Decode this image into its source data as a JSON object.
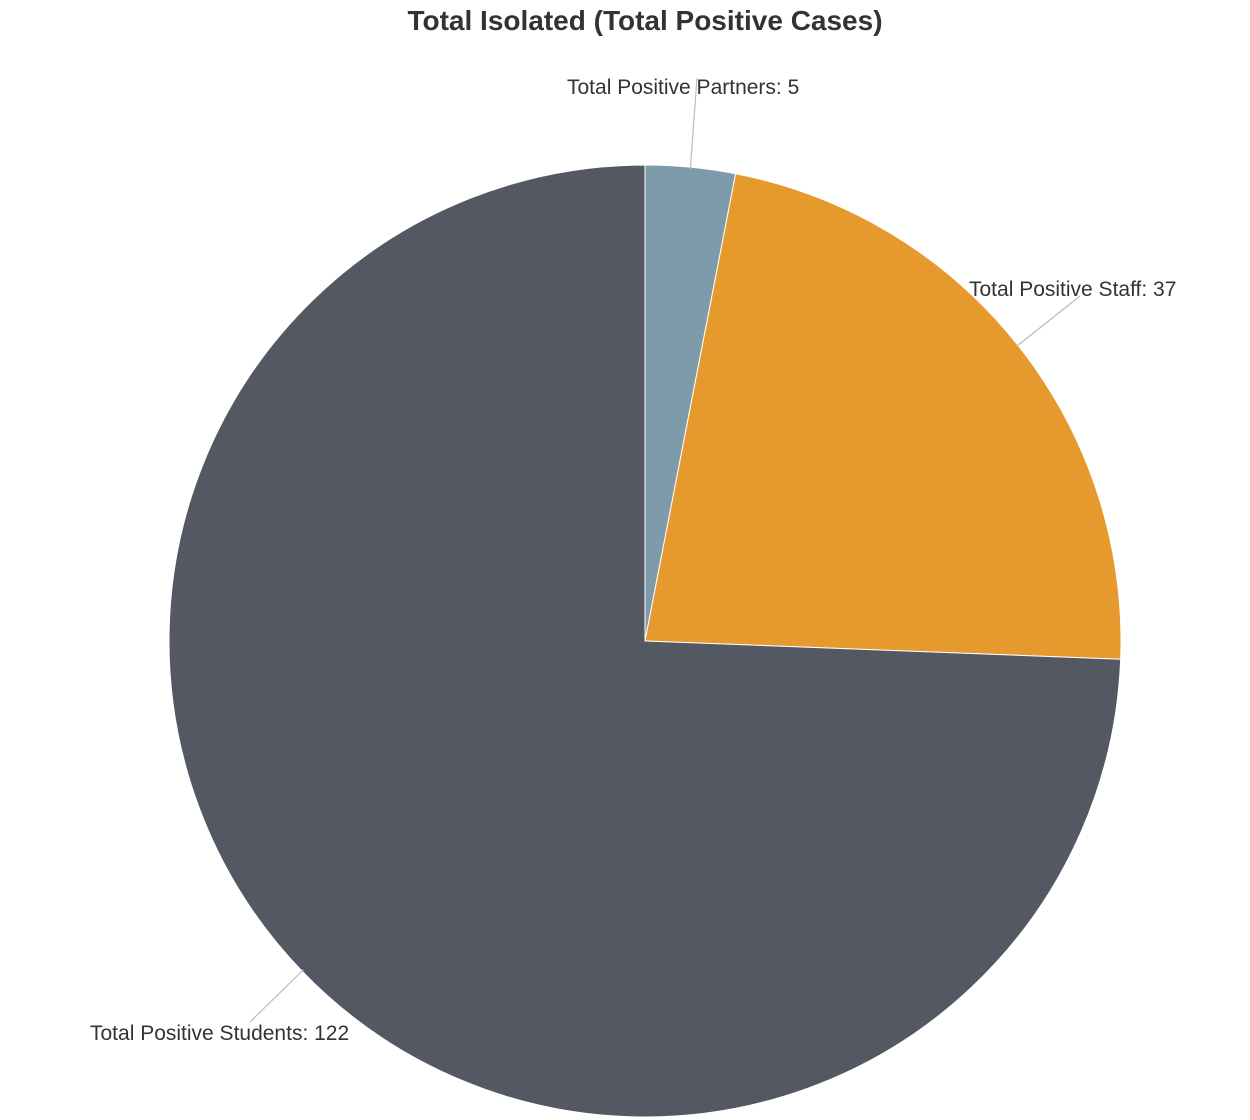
{
  "chart_data": {
    "type": "pie",
    "title": "Total Isolated (Total Positive Cases)",
    "slices": [
      {
        "name": "Total Positive Partners",
        "value": 5,
        "label": "Total Positive Partners: 5",
        "color": "#7d9ba8"
      },
      {
        "name": "Total Positive Staff",
        "value": 37,
        "label": "Total Positive Staff: 37",
        "color": "#e69a2e"
      },
      {
        "name": "Total Positive Students",
        "value": 122,
        "label": "Total Positive Students: 122",
        "color": "#545862"
      }
    ],
    "start_angle": "12 o'clock",
    "direction": "clockwise"
  }
}
